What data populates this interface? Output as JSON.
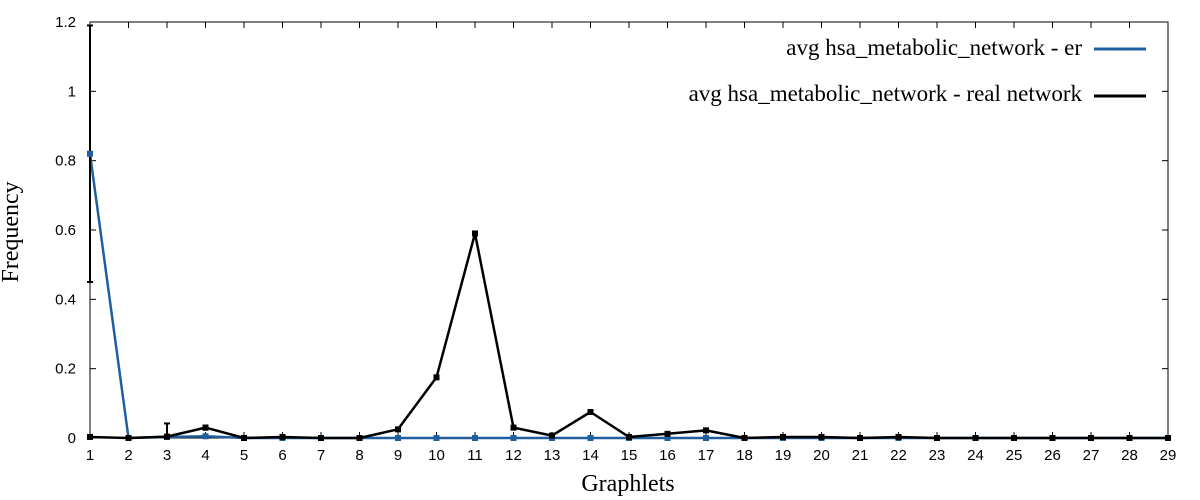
{
  "chart_data": {
    "type": "line",
    "xlabel": "Graphlets",
    "ylabel": "Frequency",
    "xlim": [
      1,
      29
    ],
    "ylim": [
      0,
      1.2
    ],
    "x_ticks": [
      "1",
      "2",
      "3",
      "4",
      "5",
      "6",
      "7",
      "8",
      "9",
      "10",
      "11",
      "12",
      "13",
      "14",
      "15",
      "16",
      "17",
      "18",
      "19",
      "20",
      "21",
      "22",
      "23",
      "24",
      "25",
      "26",
      "27",
      "28",
      "29"
    ],
    "y_ticks": [
      "0",
      "0.2",
      "0.4",
      "0.6",
      "0.8",
      "1",
      "1.2"
    ],
    "grid": false,
    "legend_position": "top-right",
    "x": [
      1,
      2,
      3,
      4,
      5,
      6,
      7,
      8,
      9,
      10,
      11,
      12,
      13,
      14,
      15,
      16,
      17,
      18,
      19,
      20,
      21,
      22,
      23,
      24,
      25,
      26,
      27,
      28,
      29
    ],
    "series": [
      {
        "name": "avg hsa_metabolic_network - er",
        "color": "#1f5fa0",
        "values": [
          0.82,
          0,
          0.003,
          0.005,
          0,
          0,
          0,
          0,
          0,
          0,
          0,
          0,
          0,
          0,
          0,
          0,
          0,
          0,
          0,
          0,
          0,
          0,
          0,
          0,
          0,
          0,
          0,
          0,
          0
        ],
        "error": [
          0.37,
          0,
          0,
          0,
          0,
          0,
          0,
          0,
          0,
          0,
          0,
          0,
          0,
          0,
          0,
          0,
          0,
          0,
          0,
          0,
          0,
          0,
          0,
          0,
          0,
          0,
          0,
          0,
          0
        ]
      },
      {
        "name": "avg hsa_metabolic_network - real network",
        "color": "#000000",
        "values": [
          0.003,
          0,
          0.004,
          0.03,
          0,
          0.003,
          0,
          0,
          0.025,
          0.175,
          0.59,
          0.03,
          0.007,
          0.075,
          0.003,
          0.012,
          0.022,
          0,
          0.003,
          0.003,
          0,
          0.003,
          0,
          0,
          0,
          0,
          0,
          0,
          0
        ],
        "error": [
          0,
          0,
          0.038,
          0.006,
          0,
          0,
          0,
          0,
          0,
          0,
          0,
          0,
          0,
          0,
          0,
          0,
          0,
          0,
          0,
          0,
          0,
          0,
          0,
          0,
          0,
          0,
          0,
          0,
          0
        ]
      }
    ]
  }
}
